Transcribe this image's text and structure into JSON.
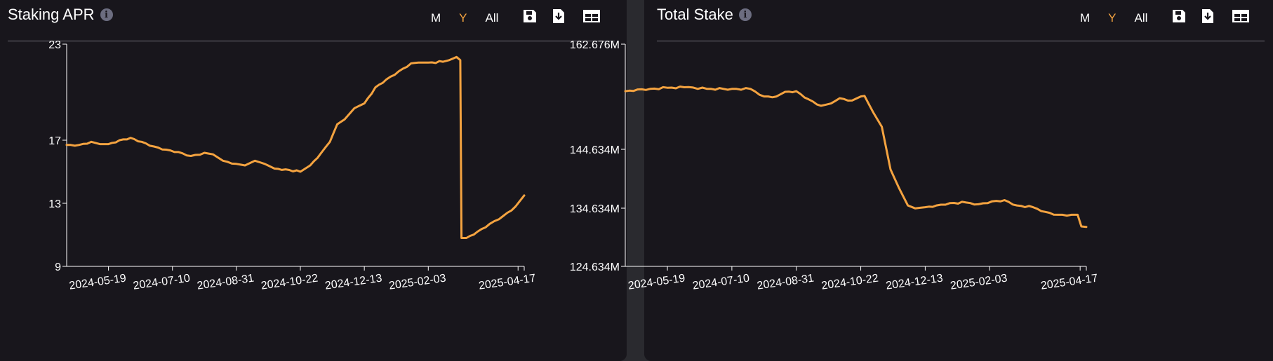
{
  "panels": [
    {
      "title": "Staking APR",
      "ranges": [
        "M",
        "Y",
        "All"
      ],
      "active_range": "Y",
      "icons": [
        "save-icon",
        "download-icon",
        "table-icon"
      ]
    },
    {
      "title": "Total Stake",
      "ranges": [
        "M",
        "Y",
        "All"
      ],
      "active_range": "Y",
      "icons": [
        "save-icon",
        "download-icon",
        "table-icon"
      ]
    }
  ],
  "colors": {
    "line": "#f4a340",
    "background": "#18161c",
    "text": "#ffffff",
    "active_range": "#f4a340"
  },
  "chart_data": [
    {
      "type": "line",
      "title": "Staking APR",
      "x_start": "2024-04-15",
      "x_end": "2025-04-22",
      "x_ticks": [
        "2024-05-19",
        "2024-07-10",
        "2024-08-31",
        "2024-10-22",
        "2024-12-13",
        "2025-02-03",
        "2025-04-17"
      ],
      "y_ticks": [
        9,
        13,
        17,
        23
      ],
      "y_scale": "piecewise",
      "ylim": [
        9,
        23
      ],
      "series": [
        {
          "x": [
            "2024-04-15",
            "2024-04-25",
            "2024-05-05",
            "2024-05-12",
            "2024-05-19",
            "2024-05-28",
            "2024-06-06",
            "2024-06-15",
            "2024-06-25",
            "2024-07-05",
            "2024-07-15",
            "2024-07-25",
            "2024-08-05",
            "2024-08-12",
            "2024-08-20",
            "2024-08-31",
            "2024-09-07",
            "2024-09-15",
            "2024-09-23",
            "2024-10-01",
            "2024-10-10",
            "2024-10-22",
            "2024-10-30",
            "2024-11-08",
            "2024-11-15",
            "2024-11-21",
            "2024-11-27",
            "2024-12-05",
            "2024-12-13",
            "2024-12-22",
            "2024-12-31",
            "2025-01-10",
            "2025-01-20",
            "2025-01-26",
            "2025-02-03",
            "2025-02-15",
            "2025-02-20",
            "2025-02-26",
            "2025-03-01",
            "2025-03-02",
            "2025-03-06",
            "2025-03-15",
            "2025-03-25",
            "2025-04-05",
            "2025-04-15",
            "2025-04-22"
          ],
          "values": [
            16.7,
            16.7,
            16.9,
            16.75,
            16.75,
            17.0,
            17.15,
            16.9,
            16.6,
            16.4,
            16.25,
            16.0,
            16.2,
            16.1,
            15.7,
            15.5,
            15.4,
            15.7,
            15.5,
            15.2,
            15.15,
            15.0,
            15.4,
            16.2,
            16.9,
            18.0,
            18.3,
            19.0,
            19.3,
            20.3,
            20.8,
            21.3,
            21.8,
            21.85,
            21.85,
            21.9,
            22.0,
            22.2,
            22.0,
            10.8,
            10.8,
            11.2,
            11.7,
            12.2,
            12.8,
            13.5
          ]
        }
      ]
    },
    {
      "type": "line",
      "title": "Total Stake",
      "x_start": "2024-04-15",
      "x_end": "2025-04-22",
      "x_ticks": [
        "2024-05-19",
        "2024-07-10",
        "2024-08-31",
        "2024-10-22",
        "2024-12-13",
        "2025-02-03",
        "2025-04-17"
      ],
      "y_ticks": [
        "124.634M",
        "134.634M",
        "144.634M",
        "162.676M"
      ],
      "y_tick_values": [
        124.634,
        134.634,
        144.634,
        162.676
      ],
      "y_scale": "piecewise",
      "ylim": [
        124.634,
        162.676
      ],
      "series": [
        {
          "x": [
            "2024-04-15",
            "2024-04-25",
            "2024-05-05",
            "2024-05-19",
            "2024-06-05",
            "2024-06-20",
            "2024-07-10",
            "2024-07-25",
            "2024-08-05",
            "2024-08-15",
            "2024-08-22",
            "2024-08-31",
            "2024-09-10",
            "2024-09-20",
            "2024-09-28",
            "2024-10-05",
            "2024-10-15",
            "2024-10-22",
            "2024-10-25",
            "2024-11-01",
            "2024-11-08",
            "2024-11-15",
            "2024-11-22",
            "2024-11-29",
            "2024-12-05",
            "2024-12-13",
            "2024-12-22",
            "2025-01-02",
            "2025-01-15",
            "2025-01-25",
            "2025-02-05",
            "2025-02-15",
            "2025-02-25",
            "2025-03-10",
            "2025-03-20",
            "2025-03-30",
            "2025-04-10",
            "2025-04-15",
            "2025-04-18",
            "2025-04-22"
          ],
          "values": [
            154.6,
            154.9,
            155.0,
            155.2,
            155.3,
            155.0,
            155.0,
            155.0,
            153.7,
            153.7,
            154.5,
            154.6,
            153.2,
            152.1,
            152.5,
            153.4,
            153.0,
            153.7,
            153.8,
            151.0,
            148.5,
            141.2,
            138.0,
            135.1,
            134.6,
            134.8,
            135.1,
            135.5,
            135.6,
            135.3,
            135.8,
            136.0,
            135.1,
            134.8,
            134.0,
            133.5,
            133.5,
            133.5,
            131.5,
            131.4
          ]
        }
      ]
    }
  ]
}
